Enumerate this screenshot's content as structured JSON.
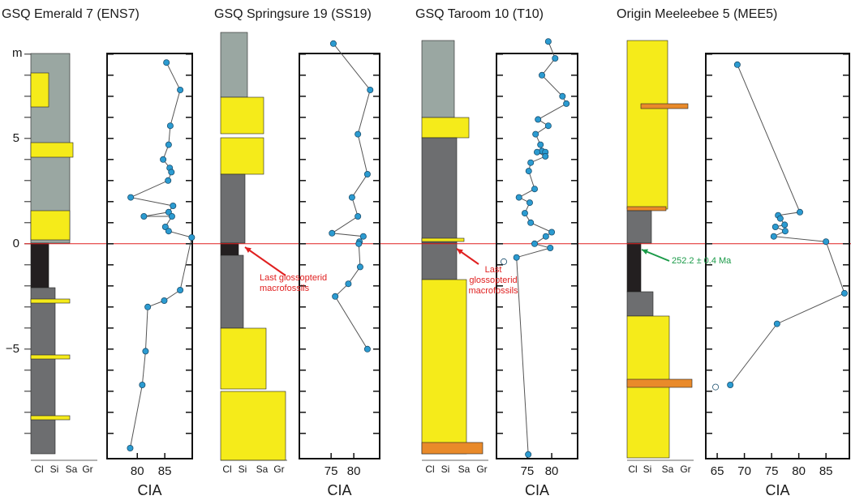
{
  "y_axis": {
    "label": "m",
    "ylim": [
      -10.2,
      9.8
    ],
    "yticks": [
      5,
      0,
      {
        "value": -5,
        "label": "−5"
      }
    ],
    "minor_yticks": [
      -9,
      -8,
      -7,
      -6,
      -5,
      -4,
      -3,
      -2,
      -1,
      0,
      1,
      2,
      3,
      4,
      5,
      6,
      7,
      8,
      9
    ]
  },
  "hline": 0,
  "chart_data": [
    {
      "type": "line",
      "title": "GSQ Emerald 7 (ENS7)",
      "xlabel": "CIA",
      "column_labels": [
        "Cl",
        "Si",
        "Sa",
        "Gr"
      ],
      "xlim": [
        74.5,
        90
      ],
      "xticks": [
        80,
        85
      ],
      "color": "#2b9bd1",
      "values": [
        85.3,
        87.8,
        86.0,
        85.7,
        84.7,
        85.9,
        86.2,
        85.6,
        78.8,
        86.5,
        85.7,
        81.2,
        86.3,
        85.1,
        85.7,
        89.9,
        87.8,
        84.9,
        81.9,
        81.5,
        80.9,
        78.7
      ],
      "depth": [
        8.6,
        7.3,
        5.6,
        4.7,
        4.0,
        3.6,
        3.4,
        3.0,
        2.2,
        1.8,
        1.5,
        1.3,
        1.3,
        0.8,
        0.6,
        0.3,
        -2.2,
        -2.7,
        -3.0,
        -5.1,
        -6.7,
        -9.7
      ]
    },
    {
      "type": "line",
      "title": "GSQ Springsure 19 (SS19)",
      "xlabel": "CIA",
      "column_labels": [
        "Cl",
        "Si",
        "Sa",
        "Gr"
      ],
      "xlim": [
        68,
        85.7
      ],
      "xticks": [
        75,
        80
      ],
      "color": "#2b9bd1",
      "values": [
        75.5,
        83.6,
        80.9,
        83.0,
        79.6,
        80.9,
        75.2,
        82.1,
        81.25,
        81.1,
        81.4,
        78.8,
        75.9,
        83.0
      ],
      "depth": [
        9.5,
        7.3,
        5.2,
        3.3,
        2.2,
        1.3,
        0.5,
        0.35,
        0.1,
        0.0,
        -1.1,
        -1.9,
        -2.5,
        -5.0
      ],
      "annotation": [
        "Last glossopterid",
        "macrofossils"
      ]
    },
    {
      "type": "line",
      "title": "GSQ Taroom 10 (T10)",
      "xlabel": "CIA",
      "column_labels": [
        "Cl",
        "Si",
        "Sa",
        "Gr"
      ],
      "xlim": [
        68.7,
        85.3
      ],
      "xticks": [
        75,
        80
      ],
      "color": "#2b9bd1",
      "values": [
        79.3,
        80.7,
        78.0,
        82.2,
        83.0,
        77.2,
        79.3,
        76.7,
        77.7,
        78.0,
        78.7,
        77.0,
        78.7,
        75.7,
        75.3,
        76.5,
        73.3,
        75.5,
        74.5,
        75.7,
        80.0,
        78.8,
        76.5,
        79.7,
        72.8,
        75.2
      ],
      "depth": [
        9.6,
        8.8,
        8.0,
        7.0,
        6.65,
        5.9,
        5.6,
        5.2,
        4.7,
        4.4,
        4.35,
        4.35,
        4.15,
        3.85,
        3.45,
        2.6,
        2.2,
        1.95,
        1.45,
        1.0,
        0.55,
        0.35,
        0.0,
        -0.2,
        -0.65,
        -10.0
      ],
      "open_values": [
        70.2
      ],
      "open_depth": [
        -0.85
      ],
      "annotation": [
        "Last",
        "glossopterid",
        "macrofossils"
      ]
    },
    {
      "type": "line",
      "title": "Origin Meeleebee 5 (MEE5)",
      "xlabel": "CIA",
      "column_labels": [
        "Cl",
        "Si",
        "Sa",
        "Gr"
      ],
      "xlim": [
        62.9,
        89.3
      ],
      "xticks": [
        65,
        70,
        75,
        80,
        85
      ],
      "color": "#2b9bd1",
      "values": [
        68.7,
        80.2,
        76.2,
        76.6,
        77.4,
        75.7,
        77.5,
        75.4,
        85.0,
        88.4,
        76.0,
        67.4
      ],
      "depth": [
        8.5,
        1.5,
        1.35,
        1.2,
        0.9,
        0.8,
        0.6,
        0.35,
        0.1,
        -2.35,
        -3.8,
        -6.7
      ],
      "open_values": [
        64.7
      ],
      "open_depth": [
        -6.8
      ],
      "annotation": [
        "252.2 ± 0.4 Ma"
      ]
    }
  ]
}
